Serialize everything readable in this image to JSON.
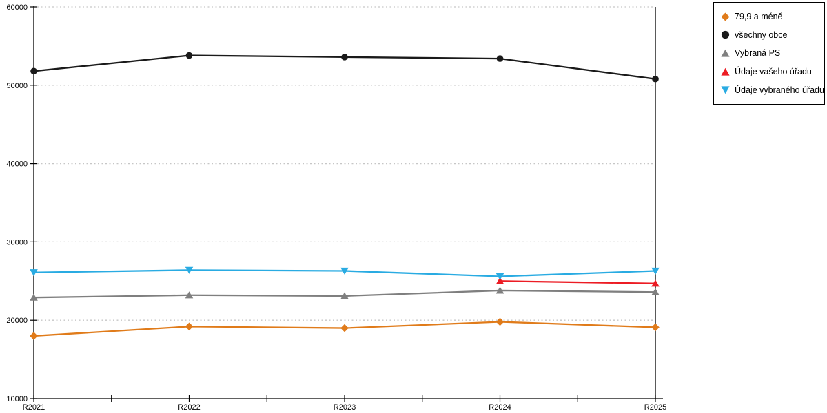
{
  "chart_data": {
    "type": "line",
    "title": "",
    "xlabel": "",
    "ylabel": "",
    "categories": [
      "R2021",
      "R2022",
      "R2023",
      "R2024",
      "R2025"
    ],
    "series": [
      {
        "name": "79,9 a méně",
        "color": "#E07B1A",
        "marker": "diamond",
        "values": [
          18000,
          19200,
          19000,
          19800,
          19100
        ]
      },
      {
        "name": "všechny obce",
        "color": "#1A1A1A",
        "marker": "circle",
        "values": [
          51800,
          53800,
          53600,
          53400,
          50800
        ]
      },
      {
        "name": "Vybraná PS",
        "color": "#7F7F7F",
        "marker": "triangle-up",
        "values": [
          22900,
          23200,
          23100,
          23800,
          23600
        ]
      },
      {
        "name": "Údaje vašeho úřadu",
        "color": "#EC1C24",
        "marker": "triangle-up",
        "values": [
          null,
          null,
          null,
          25000,
          24700
        ]
      },
      {
        "name": "Údaje vybraného úřadu",
        "color": "#29ABE2",
        "marker": "triangle-down",
        "values": [
          26100,
          26400,
          26300,
          25600,
          26300
        ]
      }
    ],
    "ylim": [
      10000,
      60000
    ],
    "ytick_step": 10000,
    "y_tick_labels": [
      "10000",
      "20000",
      "30000",
      "40000",
      "50000",
      "60000"
    ],
    "grid": "horizontal-dashed",
    "legend_position": "top-right-outside",
    "colors": {
      "axis": "#000000",
      "gridline": "#C6C6C6",
      "background": "#FFFFFF"
    }
  }
}
